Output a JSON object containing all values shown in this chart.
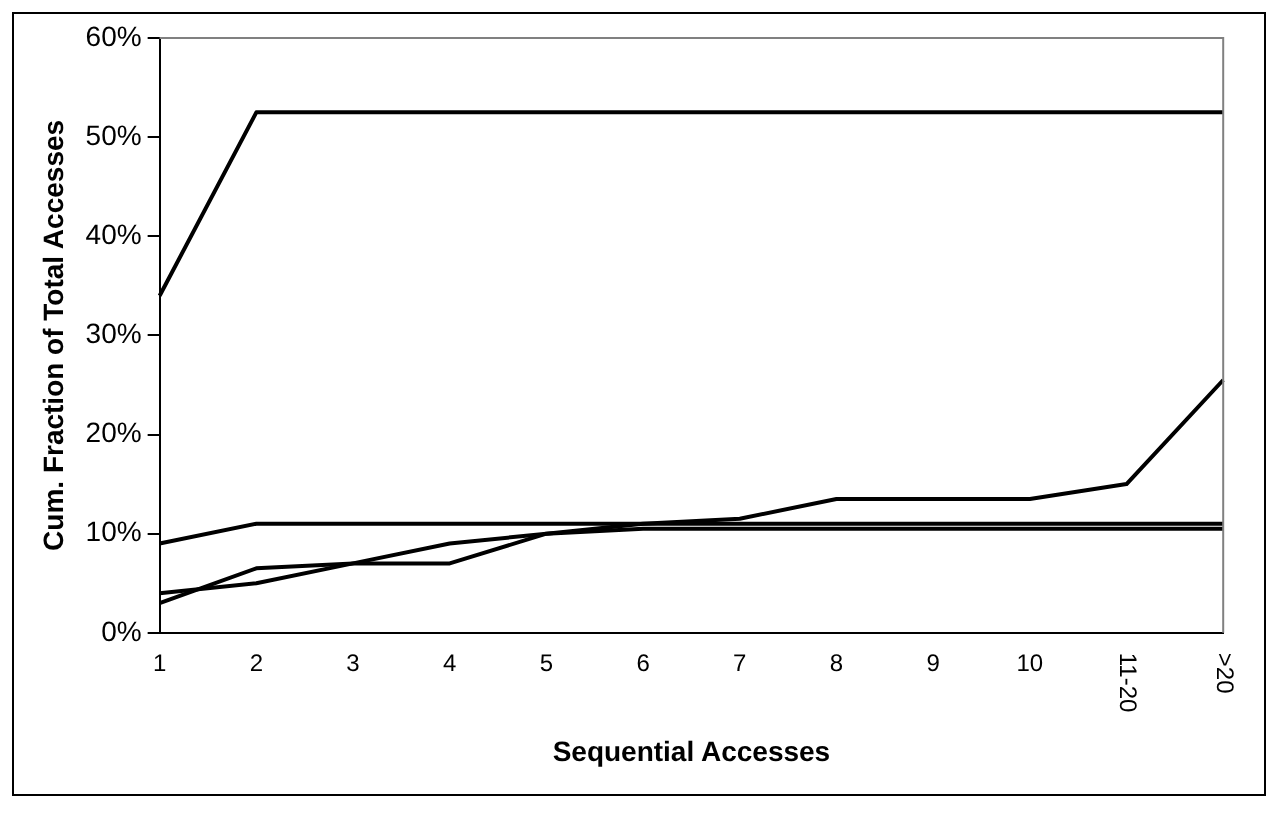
{
  "chart_data": {
    "type": "line",
    "xlabel": "Sequential Accesses",
    "ylabel": "Cum. Fraction of Total Accesses",
    "categories": [
      "1",
      "2",
      "3",
      "4",
      "5",
      "6",
      "7",
      "8",
      "9",
      "10",
      "11-20",
      ">20"
    ],
    "series": [
      {
        "color": "#000000",
        "values": [
          34,
          52.5,
          52.5,
          52.5,
          52.5,
          52.5,
          52.5,
          52.5,
          52.5,
          52.5,
          52.5,
          52.5
        ]
      },
      {
        "color": "#000000",
        "values": [
          9,
          11,
          11,
          11,
          11,
          11,
          11,
          11,
          11,
          11,
          11,
          11
        ]
      },
      {
        "color": "#000000",
        "values": [
          4,
          5,
          7,
          9,
          10,
          10.5,
          10.5,
          10.5,
          10.5,
          10.5,
          10.5,
          10.5
        ]
      },
      {
        "color": "#000000",
        "values": [
          3,
          6.5,
          7,
          7,
          10,
          11,
          11.5,
          13.5,
          13.5,
          13.5,
          15,
          25.5
        ]
      }
    ],
    "ylim": [
      0,
      60
    ],
    "yticks": [
      {
        "value": 0,
        "label": "0%"
      },
      {
        "value": 10,
        "label": "10%"
      },
      {
        "value": 20,
        "label": "20%"
      },
      {
        "value": 30,
        "label": "30%"
      },
      {
        "value": 40,
        "label": "40%"
      },
      {
        "value": 50,
        "label": "50%"
      },
      {
        "value": 60,
        "label": "60%"
      }
    ],
    "grid": false,
    "legend": false,
    "marker": "none",
    "line_style": "solid"
  }
}
